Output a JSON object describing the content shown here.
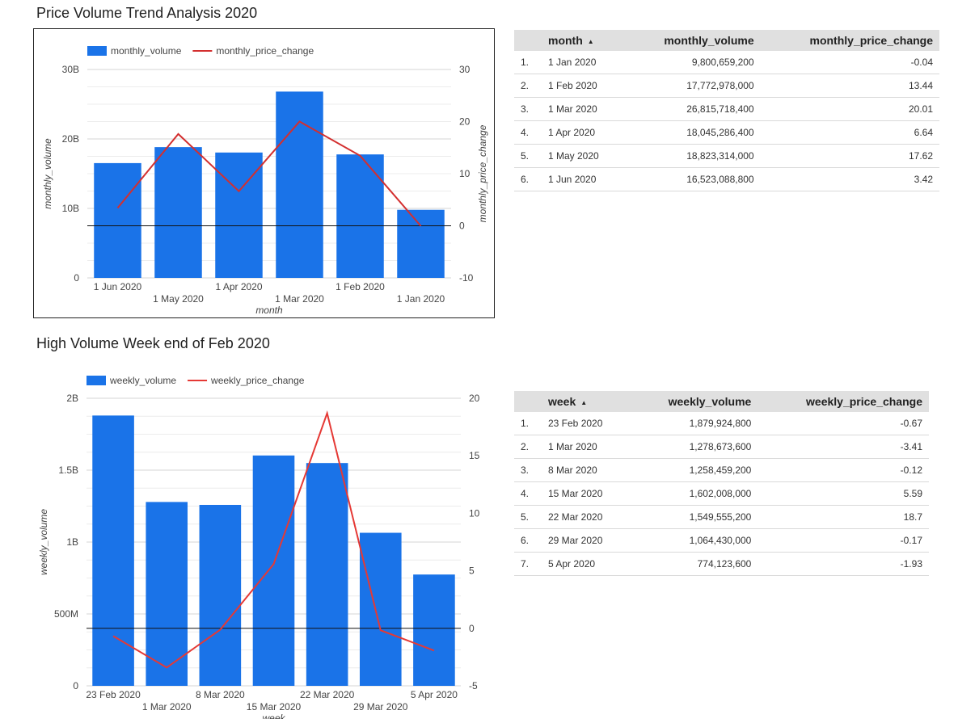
{
  "chart_data": [
    {
      "type": "bar",
      "title": "Price Volume Trend Analysis 2020",
      "categories": [
        "1 Jun 2020",
        "1 May 2020",
        "1 Apr 2020",
        "1 Mar 2020",
        "1 Feb 2020",
        "1 Jan 2020"
      ],
      "series": [
        {
          "name": "monthly_volume",
          "type": "bar",
          "axis": "left",
          "color": "#1a73e8",
          "values": [
            16523088800,
            18823314000,
            18045286400,
            26815718400,
            17772978000,
            9800659200
          ]
        },
        {
          "name": "monthly_price_change",
          "type": "line",
          "axis": "right",
          "color": "#d32f2f",
          "values": [
            3.42,
            17.62,
            6.64,
            20.01,
            13.44,
            -0.04
          ]
        }
      ],
      "xlabel": "month",
      "ylabel": "monthly_volume",
      "y2label": "monthly_price_change",
      "ylim": [
        0,
        30000000000
      ],
      "y2lim": [
        -10,
        30
      ],
      "yticks": [
        {
          "v": 0,
          "label": "0"
        },
        {
          "v": 10000000000,
          "label": "10B"
        },
        {
          "v": 20000000000,
          "label": "20B"
        },
        {
          "v": 30000000000,
          "label": "30B"
        }
      ],
      "y2ticks": [
        {
          "v": -10,
          "label": "-10"
        },
        {
          "v": 0,
          "label": "0"
        },
        {
          "v": 10,
          "label": "10"
        },
        {
          "v": 20,
          "label": "20"
        },
        {
          "v": 30,
          "label": "30"
        }
      ],
      "legend": "top-left"
    },
    {
      "type": "bar",
      "title": "High Volume Week end of Feb 2020",
      "categories": [
        "23 Feb 2020",
        "1 Mar 2020",
        "8 Mar 2020",
        "15 Mar 2020",
        "22 Mar 2020",
        "29 Mar 2020",
        "5 Apr 2020"
      ],
      "series": [
        {
          "name": "weekly_volume",
          "type": "bar",
          "axis": "left",
          "color": "#1a73e8",
          "values": [
            1879924800,
            1278673600,
            1258459200,
            1602008000,
            1549555200,
            1064430000,
            774123600
          ]
        },
        {
          "name": "weekly_price_change",
          "type": "line",
          "axis": "right",
          "color": "#e53935",
          "values": [
            -0.67,
            -3.41,
            -0.12,
            5.59,
            18.7,
            -0.17,
            -1.93
          ]
        }
      ],
      "xlabel": "week",
      "ylabel": "weekly_volume",
      "ylim": [
        0,
        2000000000
      ],
      "y2lim": [
        -5,
        20
      ],
      "yticks": [
        {
          "v": 0,
          "label": "0"
        },
        {
          "v": 500000000,
          "label": "500M"
        },
        {
          "v": 1000000000,
          "label": "1B"
        },
        {
          "v": 1500000000,
          "label": "1.5B"
        },
        {
          "v": 2000000000,
          "label": "2B"
        }
      ],
      "y2ticks": [
        {
          "v": -5,
          "label": "-5"
        },
        {
          "v": 0,
          "label": "0"
        },
        {
          "v": 5,
          "label": "5"
        },
        {
          "v": 10,
          "label": "10"
        },
        {
          "v": 15,
          "label": "15"
        },
        {
          "v": 20,
          "label": "20"
        }
      ],
      "legend": "top-left"
    }
  ],
  "tables": [
    {
      "headers": {
        "key": "month",
        "vol": "monthly_volume",
        "chg": "monthly_price_change"
      },
      "rows": [
        {
          "idx": "1.",
          "key": "1 Jan 2020",
          "vol": "9,800,659,200",
          "chg": "-0.04"
        },
        {
          "idx": "2.",
          "key": "1 Feb 2020",
          "vol": "17,772,978,000",
          "chg": "13.44"
        },
        {
          "idx": "3.",
          "key": "1 Mar 2020",
          "vol": "26,815,718,400",
          "chg": "20.01"
        },
        {
          "idx": "4.",
          "key": "1 Apr 2020",
          "vol": "18,045,286,400",
          "chg": "6.64"
        },
        {
          "idx": "5.",
          "key": "1 May 2020",
          "vol": "18,823,314,000",
          "chg": "17.62"
        },
        {
          "idx": "6.",
          "key": "1 Jun 2020",
          "vol": "16,523,088,800",
          "chg": "3.42"
        }
      ]
    },
    {
      "headers": {
        "key": "week",
        "vol": "weekly_volume",
        "chg": "weekly_price_change"
      },
      "rows": [
        {
          "idx": "1.",
          "key": "23 Feb 2020",
          "vol": "1,879,924,800",
          "chg": "-0.67"
        },
        {
          "idx": "2.",
          "key": "1 Mar 2020",
          "vol": "1,278,673,600",
          "chg": "-3.41"
        },
        {
          "idx": "3.",
          "key": "8 Mar 2020",
          "vol": "1,258,459,200",
          "chg": "-0.12"
        },
        {
          "idx": "4.",
          "key": "15 Mar 2020",
          "vol": "1,602,008,000",
          "chg": "5.59"
        },
        {
          "idx": "5.",
          "key": "22 Mar 2020",
          "vol": "1,549,555,200",
          "chg": "18.7"
        },
        {
          "idx": "6.",
          "key": "29 Mar 2020",
          "vol": "1,064,430,000",
          "chg": "-0.17"
        },
        {
          "idx": "7.",
          "key": "5 Apr 2020",
          "vol": "774,123,600",
          "chg": "-1.93"
        }
      ]
    }
  ]
}
